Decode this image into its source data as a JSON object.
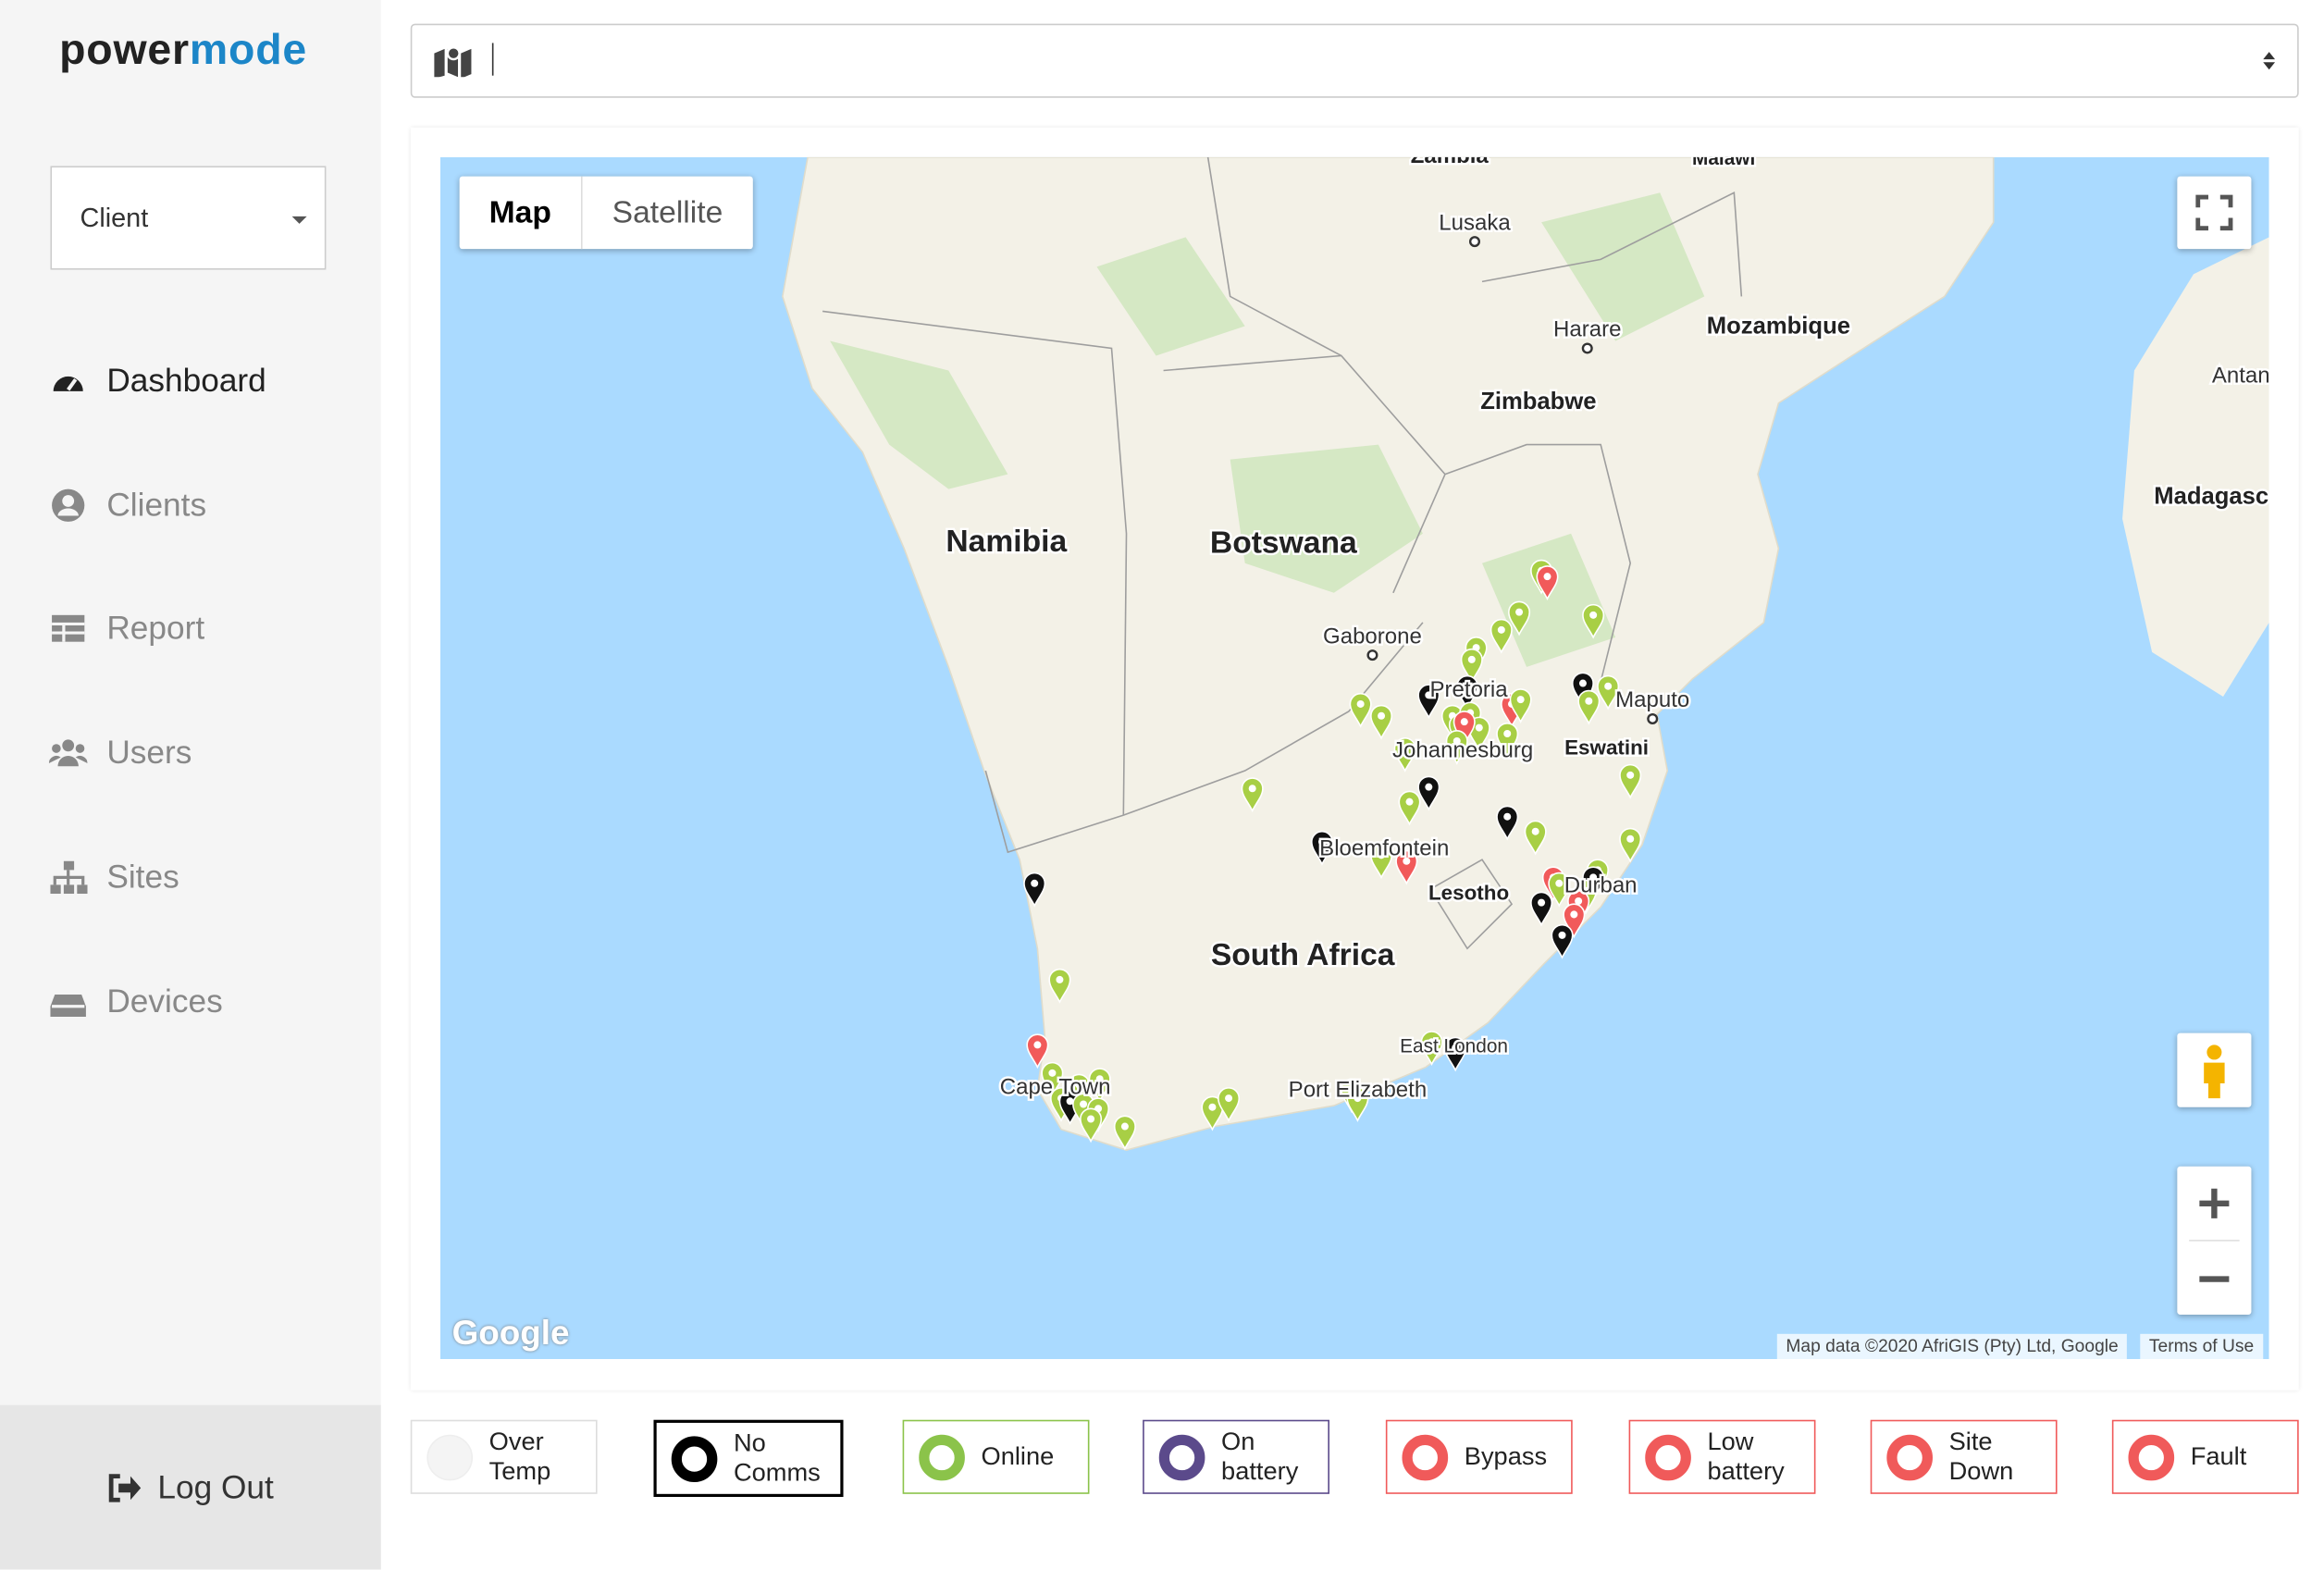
{
  "brand": {
    "part1": "power",
    "part2": "mode"
  },
  "client_select": "Client",
  "nav": [
    "Dashboard",
    "Clients",
    "Report",
    "Users",
    "Sites",
    "Devices"
  ],
  "logout": "Log Out",
  "map": {
    "tabs": [
      "Map",
      "Satellite"
    ],
    "places": [
      "Zambia",
      "Malawi",
      "Lusaka",
      "Harare",
      "Mozambique",
      "Zimbabwe",
      "Antan",
      "Madagasc",
      "Namibia",
      "Botswana",
      "Gaborone",
      "Pretoria",
      "Maputo",
      "Johannesburg",
      "Eswatini",
      "Bloemfontein",
      "Lesotho",
      "Durban",
      "South Africa",
      "East London",
      "Cape Town",
      "Port Elizabeth"
    ],
    "logo": "Google",
    "attribution": "Map data ©2020 AfriGIS (Pty) Ltd, Google",
    "terms": "Terms of Use"
  },
  "legend": [
    {
      "label": [
        "Over",
        "Temp"
      ]
    },
    {
      "label": [
        "No",
        "Comms"
      ]
    },
    {
      "label": [
        "Online"
      ]
    },
    {
      "label": [
        "On",
        "battery"
      ]
    },
    {
      "label": [
        "Bypass"
      ]
    },
    {
      "label": [
        "Low",
        "battery"
      ]
    },
    {
      "label": [
        "Site",
        "Down"
      ]
    },
    {
      "label": [
        "Fault"
      ]
    }
  ]
}
